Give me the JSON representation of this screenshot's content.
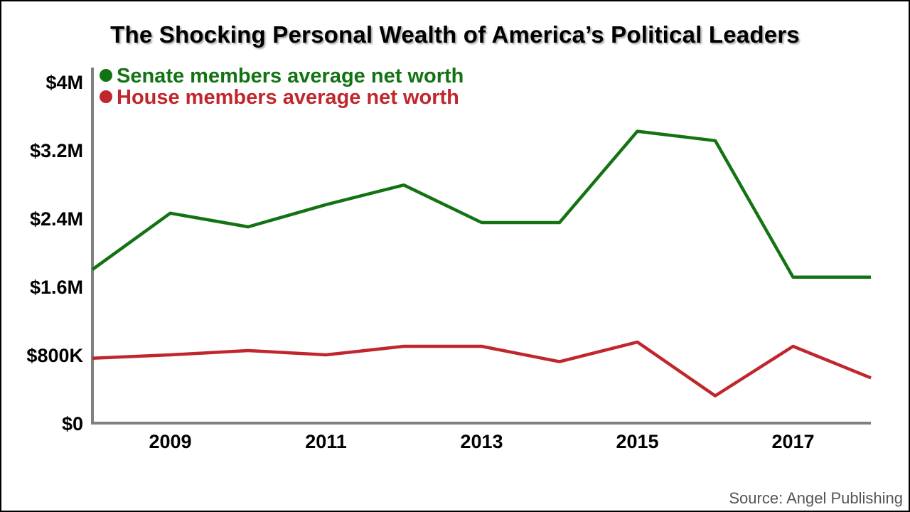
{
  "title": "The Shocking Personal Wealth of America’s Political Leaders",
  "source": "Source: Angel Publishing",
  "chart_data": {
    "type": "line",
    "x": [
      2008,
      2009,
      2010,
      2011,
      2012,
      2013,
      2014,
      2015,
      2016,
      2017,
      2018
    ],
    "x_ticks": [
      2009,
      2011,
      2013,
      2015,
      2017
    ],
    "x_tick_labels": [
      "2009",
      "2011",
      "2013",
      "2015",
      "2017"
    ],
    "xlim": [
      2008,
      2018
    ],
    "y_ticks": [
      0,
      800000,
      1600000,
      2400000,
      3200000,
      4000000
    ],
    "y_tick_labels": [
      "$0",
      "$800K",
      "$1.6M",
      "$2.4M",
      "$3.2M",
      "$4M"
    ],
    "ylim": [
      0,
      4000000
    ],
    "grid": false,
    "legend_position": "top-left",
    "series": [
      {
        "name": "Senate members average net worth",
        "color": "#137313",
        "values": [
          1800000,
          2460000,
          2300000,
          2560000,
          2790000,
          2350000,
          2350000,
          3420000,
          3310000,
          1710000,
          1710000
        ]
      },
      {
        "name": "House members average net worth",
        "color": "#c0272d",
        "values": [
          760000,
          800000,
          850000,
          800000,
          900000,
          900000,
          720000,
          950000,
          320000,
          900000,
          530000
        ]
      }
    ]
  }
}
